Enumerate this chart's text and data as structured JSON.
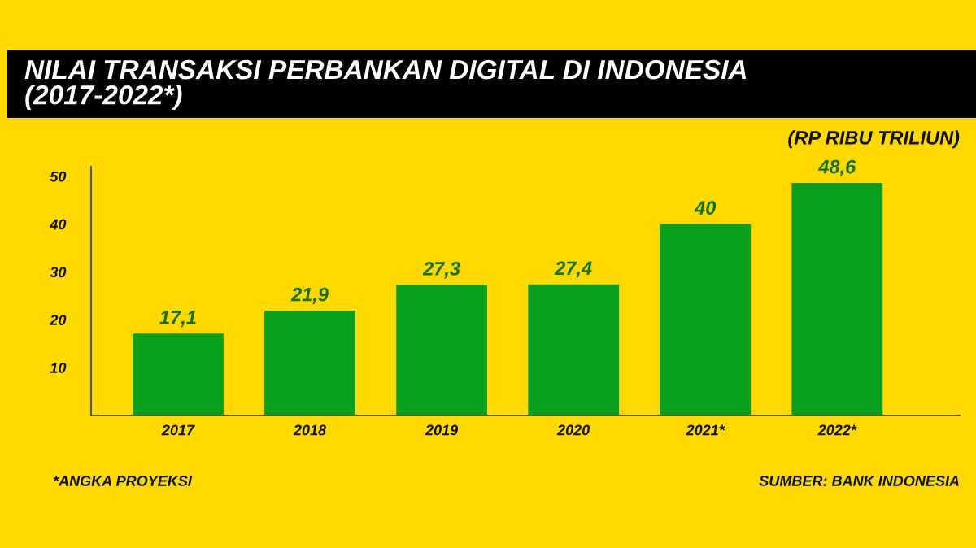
{
  "chart_data": {
    "type": "bar",
    "title": "NILAI TRANSAKSI PERBANKAN DIGITAL DI INDONESIA\n(2017-2022*)",
    "ylabel": "(RP RIBU TRILIUN)",
    "categories": [
      "2017",
      "2018",
      "2019",
      "2020",
      "2021*",
      "2022*"
    ],
    "values": [
      17.1,
      21.9,
      27.3,
      27.4,
      40,
      48.6
    ],
    "value_labels": [
      "17,1",
      "21,9",
      "27,3",
      "27,4",
      "40",
      "48,6"
    ],
    "color": "#0a9f1b",
    "ylim": [
      0,
      52
    ],
    "yticks": [
      10,
      20,
      30,
      40,
      50
    ],
    "grid": false,
    "legend": false,
    "annotations": [
      "*ANGKA PROYEKSI",
      "SUMBER: BANK INDONESIA"
    ]
  }
}
